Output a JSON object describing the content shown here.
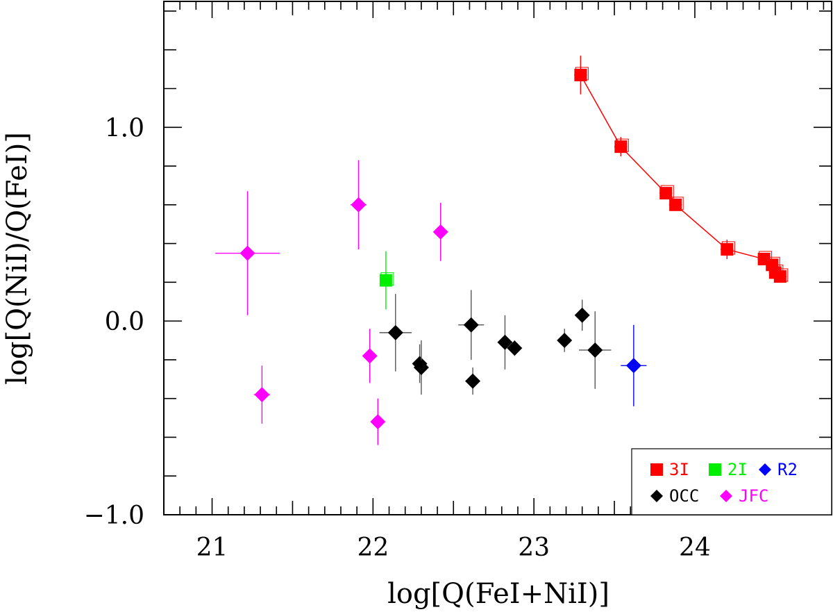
{
  "chart_data": {
    "type": "scatter",
    "xlabel": "log[Q(FeI+NiI)]",
    "ylabel": "log[Q(NiI)/Q(FeI)]",
    "xlim": [
      20.7,
      24.85
    ],
    "ylim": [
      -1.0,
      1.65
    ],
    "xticks": [
      21,
      22,
      23,
      24
    ],
    "xtick_labels": [
      "21",
      "22",
      "23",
      "24"
    ],
    "yticks": [
      -1.0,
      0.0,
      1.0
    ],
    "ytick_labels": [
      "−1.0",
      "0.0",
      "1.0"
    ],
    "x_minor_step": 0.1,
    "x_major_step": 0.5,
    "y_minor_step": 0.1,
    "y_major_step": 0.2,
    "series": [
      {
        "name": "3I",
        "color": "#ff0000",
        "marker": "square",
        "connected": true,
        "points": [
          {
            "x": 23.29,
            "y": 1.27,
            "xerr": 0.04,
            "yerr": 0.1
          },
          {
            "x": 23.54,
            "y": 0.9,
            "xerr": 0.04,
            "yerr": 0.05
          },
          {
            "x": 23.82,
            "y": 0.66,
            "xerr": 0.04,
            "yerr": 0.03
          },
          {
            "x": 23.88,
            "y": 0.6,
            "xerr": 0.04,
            "yerr": 0.03
          },
          {
            "x": 24.2,
            "y": 0.37,
            "xerr": 0.04,
            "yerr": 0.05
          },
          {
            "x": 24.43,
            "y": 0.32,
            "xerr": 0.04,
            "yerr": 0.03
          },
          {
            "x": 24.48,
            "y": 0.29,
            "xerr": 0.04,
            "yerr": 0.03
          },
          {
            "x": 24.5,
            "y": 0.25,
            "xerr": 0.04,
            "yerr": 0.03
          },
          {
            "x": 24.53,
            "y": 0.23,
            "xerr": 0.04,
            "yerr": 0.03
          }
        ]
      },
      {
        "name": "2I",
        "color": "#00ee00",
        "marker": "square",
        "connected": false,
        "points": [
          {
            "x": 22.08,
            "y": 0.21,
            "xerr": 0.03,
            "yerr": 0.15
          }
        ]
      },
      {
        "name": "R2",
        "color": "#0000ff",
        "marker": "diamond",
        "connected": false,
        "points": [
          {
            "x": 23.62,
            "y": -0.23,
            "xerr": 0.08,
            "yerr": 0.21
          }
        ]
      },
      {
        "name": "OCC",
        "color": "#000000",
        "marker": "diamond",
        "connected": false,
        "points": [
          {
            "x": 22.14,
            "y": -0.06,
            "xerr": 0.1,
            "yerr": 0.2
          },
          {
            "x": 22.29,
            "y": -0.22,
            "xerr": 0.03,
            "yerr": 0.1
          },
          {
            "x": 22.3,
            "y": -0.24,
            "xerr": 0.03,
            "yerr": 0.14
          },
          {
            "x": 22.61,
            "y": -0.02,
            "xerr": 0.08,
            "yerr": 0.18
          },
          {
            "x": 22.62,
            "y": -0.31,
            "xerr": 0.02,
            "yerr": 0.07
          },
          {
            "x": 22.82,
            "y": -0.11,
            "xerr": 0.04,
            "yerr": 0.14
          },
          {
            "x": 22.88,
            "y": -0.14,
            "xerr": 0.03,
            "yerr": 0.04
          },
          {
            "x": 23.19,
            "y": -0.1,
            "xerr": 0.03,
            "yerr": 0.06
          },
          {
            "x": 23.3,
            "y": 0.03,
            "xerr": 0.02,
            "yerr": 0.08
          },
          {
            "x": 23.38,
            "y": -0.15,
            "xerr": 0.1,
            "yerr": 0.2
          }
        ]
      },
      {
        "name": "JFC",
        "color": "#ff00ff",
        "marker": "diamond",
        "connected": false,
        "points": [
          {
            "x": 21.22,
            "y": 0.35,
            "xerr": 0.2,
            "yerr": 0.32
          },
          {
            "x": 21.31,
            "y": -0.38,
            "xerr": 0.05,
            "yerr": 0.15
          },
          {
            "x": 21.91,
            "y": 0.6,
            "xerr": 0.05,
            "yerr": 0.23
          },
          {
            "x": 21.98,
            "y": -0.18,
            "xerr": 0.03,
            "yerr": 0.14
          },
          {
            "x": 22.03,
            "y": -0.52,
            "xerr": 0.04,
            "yerr": 0.12
          },
          {
            "x": 22.42,
            "y": 0.46,
            "xerr": 0.04,
            "yerr": 0.15
          }
        ]
      }
    ],
    "legend": {
      "position": "bottom-right",
      "rows": [
        [
          "3I",
          "2I",
          "R2"
        ],
        [
          "OCC",
          "JFC"
        ]
      ],
      "label_colors": {
        "3I": "#ff0000",
        "2I": "#00ee00",
        "R2": "#0000ff",
        "OCC": "#000000",
        "JFC": "#ff00ff"
      }
    }
  }
}
